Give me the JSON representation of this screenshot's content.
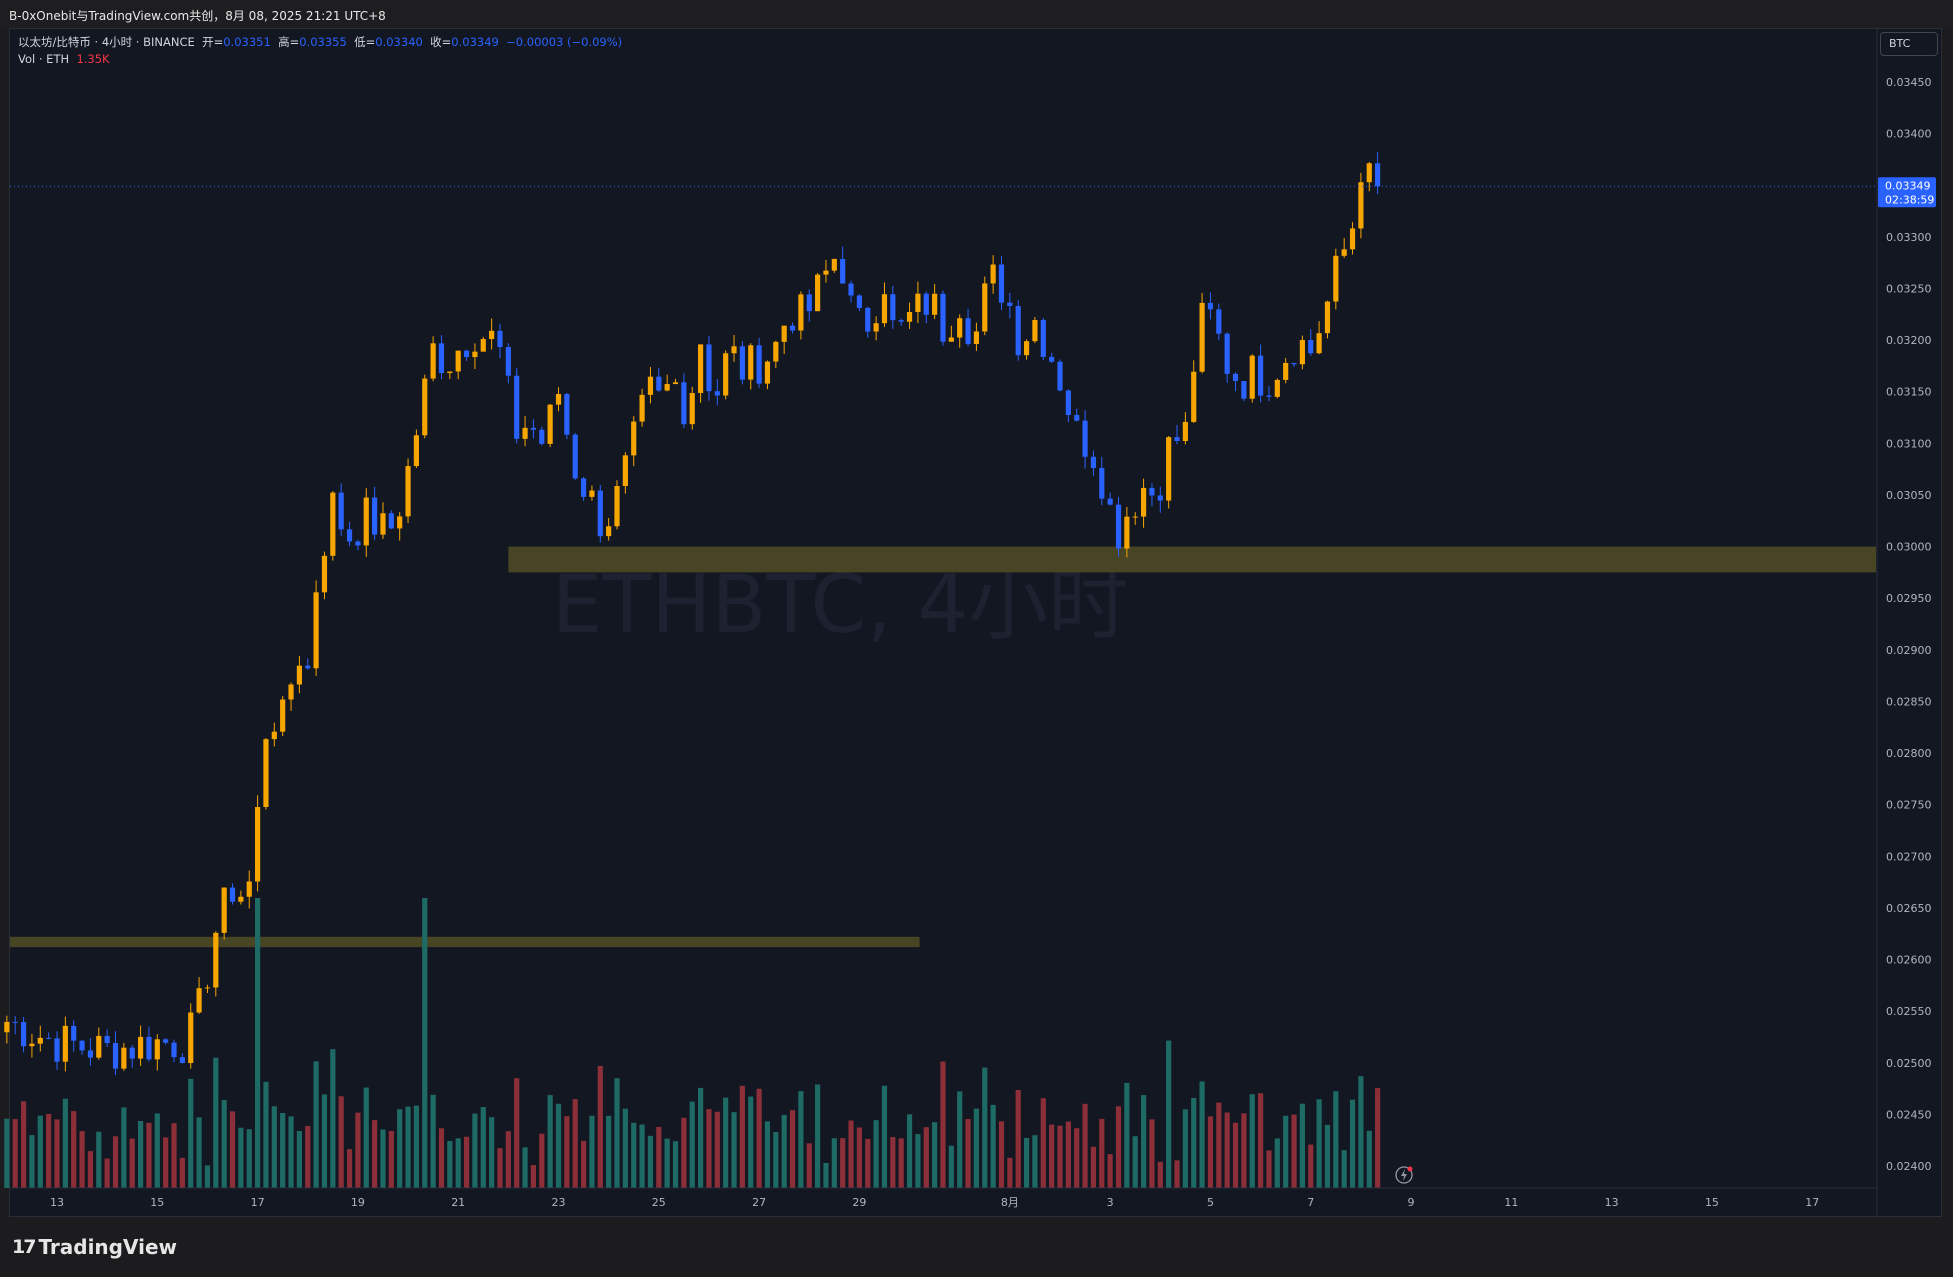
{
  "window": {
    "title": "B-0xOnebit与TradingView.com共创，8月 08, 2025 21:21 UTC+8"
  },
  "legend": {
    "symbol": "以太坊/比特币 · 4小时 · BINANCE",
    "open_label": "开=",
    "open": "0.03351",
    "high_label": "高=",
    "high": "0.03355",
    "low_label": "低=",
    "low": "0.03340",
    "close_label": "收=",
    "close": "0.03349",
    "change": "−0.00003 (−0.09%)",
    "vol_label": "Vol · ETH",
    "vol_value": "1.35K"
  },
  "currency_button": "BTC",
  "last_price": {
    "price": "0.03349",
    "countdown": "02:38:59"
  },
  "watermark": "ETHBTC, 4小时",
  "brand": {
    "name": "TradingView"
  },
  "colors": {
    "up": "#f7a600",
    "down": "#2962ff",
    "vol_up": "#1e6b66",
    "vol_down": "#8c2f39",
    "zone": "#4e4a24",
    "background": "#131722"
  },
  "chart_data": {
    "type": "candlestick",
    "timeframe": "4h",
    "y_axis": {
      "ticks": [
        "0.02400",
        "0.02450",
        "0.02500",
        "0.02550",
        "0.02600",
        "0.02650",
        "0.02700",
        "0.02750",
        "0.02800",
        "0.02850",
        "0.02900",
        "0.02950",
        "0.03000",
        "0.03050",
        "0.03100",
        "0.03150",
        "0.03200",
        "0.03250",
        "0.03300",
        "0.03350",
        "0.03400",
        "0.03450"
      ],
      "range": [
        0.02385,
        0.03475
      ]
    },
    "x_axis": {
      "ticks": [
        "13",
        "15",
        "17",
        "19",
        "21",
        "23",
        "25",
        "27",
        "29",
        "8月",
        "3",
        "5",
        "7",
        "9",
        "11",
        "13",
        "15",
        "17"
      ],
      "tick_days": [
        13,
        15,
        17,
        19,
        21,
        23,
        25,
        27,
        29,
        32,
        34,
        36,
        38,
        40,
        42,
        44,
        46,
        48
      ],
      "range_days": [
        12,
        50
      ]
    },
    "zones": [
      {
        "y_top": 0.03,
        "y_bottom": 0.02975,
        "x_start_day": 22.0
      },
      {
        "y_top": 0.02622,
        "y_bottom": 0.02612,
        "x_start_day": 12.0,
        "x_end_day": 30.2
      }
    ],
    "waypoints_close": [
      [
        12.0,
        0.0254
      ],
      [
        13.0,
        0.0252
      ],
      [
        14.0,
        0.02512
      ],
      [
        15.0,
        0.0252
      ],
      [
        15.6,
        0.0252
      ],
      [
        15.9,
        0.0256
      ],
      [
        16.1,
        0.0262
      ],
      [
        16.5,
        0.0267
      ],
      [
        16.8,
        0.0266
      ],
      [
        17.0,
        0.0274
      ],
      [
        17.2,
        0.0284
      ],
      [
        17.5,
        0.0283
      ],
      [
        17.8,
        0.029
      ],
      [
        18.0,
        0.0288
      ],
      [
        18.2,
        0.0298
      ],
      [
        18.5,
        0.0304
      ],
      [
        18.8,
        0.0301
      ],
      [
        19.2,
        0.0303
      ],
      [
        19.6,
        0.0301
      ],
      [
        19.9,
        0.0305
      ],
      [
        20.2,
        0.0312
      ],
      [
        20.5,
        0.0319
      ],
      [
        20.8,
        0.0318
      ],
      [
        21.3,
        0.0321
      ],
      [
        21.7,
        0.032
      ],
      [
        21.9,
        0.0318
      ],
      [
        22.1,
        0.0311
      ],
      [
        22.4,
        0.0312
      ],
      [
        22.7,
        0.031
      ],
      [
        23.0,
        0.0315
      ],
      [
        23.3,
        0.0308
      ],
      [
        23.7,
        0.0304
      ],
      [
        23.9,
        0.0302
      ],
      [
        24.2,
        0.0305
      ],
      [
        24.5,
        0.031
      ],
      [
        24.8,
        0.0315
      ],
      [
        25.0,
        0.0314
      ],
      [
        25.3,
        0.0316
      ],
      [
        25.6,
        0.0313
      ],
      [
        25.8,
        0.0321
      ],
      [
        26.1,
        0.0314
      ],
      [
        26.4,
        0.0319
      ],
      [
        26.7,
        0.0317
      ],
      [
        27.0,
        0.0318
      ],
      [
        27.3,
        0.0319
      ],
      [
        27.6,
        0.0323
      ],
      [
        27.9,
        0.0322
      ],
      [
        28.2,
        0.0325
      ],
      [
        28.5,
        0.0328
      ],
      [
        28.7,
        0.0327
      ],
      [
        28.9,
        0.0321
      ],
      [
        29.2,
        0.0322
      ],
      [
        29.5,
        0.0326
      ],
      [
        29.7,
        0.032
      ],
      [
        30.0,
        0.0322
      ],
      [
        30.4,
        0.0324
      ],
      [
        30.7,
        0.0321
      ],
      [
        31.0,
        0.0324
      ],
      [
        31.3,
        0.032
      ],
      [
        31.6,
        0.0326
      ],
      [
        31.9,
        0.0325
      ],
      [
        32.2,
        0.032
      ],
      [
        32.5,
        0.0322
      ],
      [
        32.8,
        0.0319
      ],
      [
        33.1,
        0.0315
      ],
      [
        33.3,
        0.0311
      ],
      [
        33.6,
        0.031
      ],
      [
        33.9,
        0.0306
      ],
      [
        34.1,
        0.0301
      ],
      [
        34.4,
        0.0304
      ],
      [
        34.7,
        0.0306
      ],
      [
        34.9,
        0.0305
      ],
      [
        35.2,
        0.031
      ],
      [
        35.5,
        0.0311
      ],
      [
        35.7,
        0.0319
      ],
      [
        35.9,
        0.0323
      ],
      [
        36.1,
        0.0321
      ],
      [
        36.3,
        0.0318
      ],
      [
        36.6,
        0.0316
      ],
      [
        36.9,
        0.0317
      ],
      [
        37.1,
        0.0316
      ],
      [
        37.4,
        0.0318
      ],
      [
        37.7,
        0.032
      ],
      [
        38.0,
        0.0319
      ],
      [
        38.3,
        0.0323
      ],
      [
        38.6,
        0.0328
      ],
      [
        38.8,
        0.033
      ],
      [
        39.0,
        0.0337
      ],
      [
        39.2,
        0.0335
      ],
      [
        39.4,
        0.03349
      ]
    ],
    "volume_peaks": [
      {
        "day": 17.0,
        "approx_eth": "tallest"
      },
      {
        "day": 20.3,
        "approx_eth": "tallest"
      }
    ],
    "last": {
      "price": 0.03349,
      "day": 39.4
    }
  }
}
